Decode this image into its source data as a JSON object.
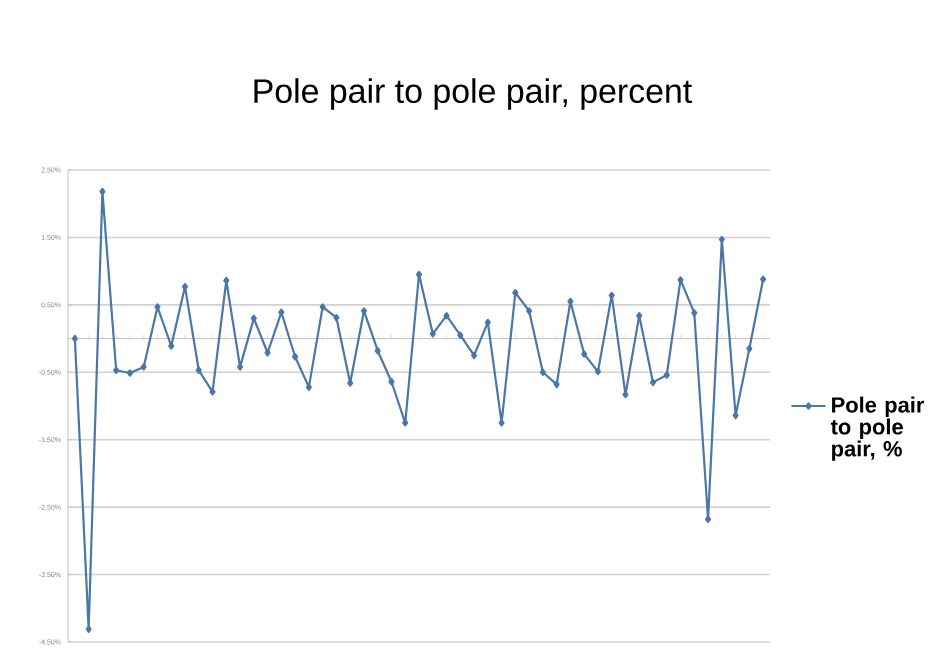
{
  "chart_data": {
    "type": "line",
    "title": "Pole pair to pole pair, percent",
    "categories": [
      null,
      null,
      null,
      null,
      null,
      null,
      null,
      null,
      null,
      null,
      null,
      null,
      null,
      null,
      null,
      null,
      null,
      null,
      null,
      null,
      null,
      null,
      null,
      null,
      null,
      null,
      null,
      null,
      null,
      null,
      null,
      null,
      null,
      null,
      null,
      null,
      null,
      null,
      null,
      null,
      null,
      null,
      null,
      null,
      null,
      null,
      null,
      null,
      null,
      null,
      null
    ],
    "series": [
      {
        "name": "Pole pair to pole pair, %",
        "color": "#4a76a8",
        "values": [
          0.0,
          -4.31,
          2.18,
          -0.47,
          -0.51,
          -0.42,
          0.47,
          -0.11,
          0.77,
          -0.47,
          -0.79,
          0.86,
          -0.42,
          0.3,
          -0.21,
          0.39,
          -0.27,
          -0.72,
          0.47,
          0.31,
          -0.66,
          0.41,
          -0.18,
          -0.64,
          -1.25,
          0.95,
          0.07,
          0.34,
          0.05,
          -0.25,
          0.24,
          -1.25,
          0.68,
          0.41,
          -0.5,
          -0.68,
          0.55,
          -0.23,
          -0.49,
          0.64,
          -0.83,
          0.34,
          -0.65,
          -0.54,
          0.87,
          0.38,
          -2.68,
          1.47,
          -1.14,
          -0.15,
          0.88
        ]
      }
    ],
    "ylim": [
      -4.5,
      2.5
    ],
    "yticks": [
      {
        "value": 2.5,
        "label": "2.50%"
      },
      {
        "value": 1.5,
        "label": "1.50%"
      },
      {
        "value": 0.5,
        "label": "0.50%"
      },
      {
        "value": -0.5,
        "label": "-0.50%"
      },
      {
        "value": -1.5,
        "label": "-1.50%"
      },
      {
        "value": -2.5,
        "label": "-2.50%"
      },
      {
        "value": -3.5,
        "label": "-3.50%"
      },
      {
        "value": -4.5,
        "label": "-4.50%"
      }
    ],
    "grid": "y",
    "legend": "right",
    "marker": "diamond",
    "line_style": "solid"
  }
}
